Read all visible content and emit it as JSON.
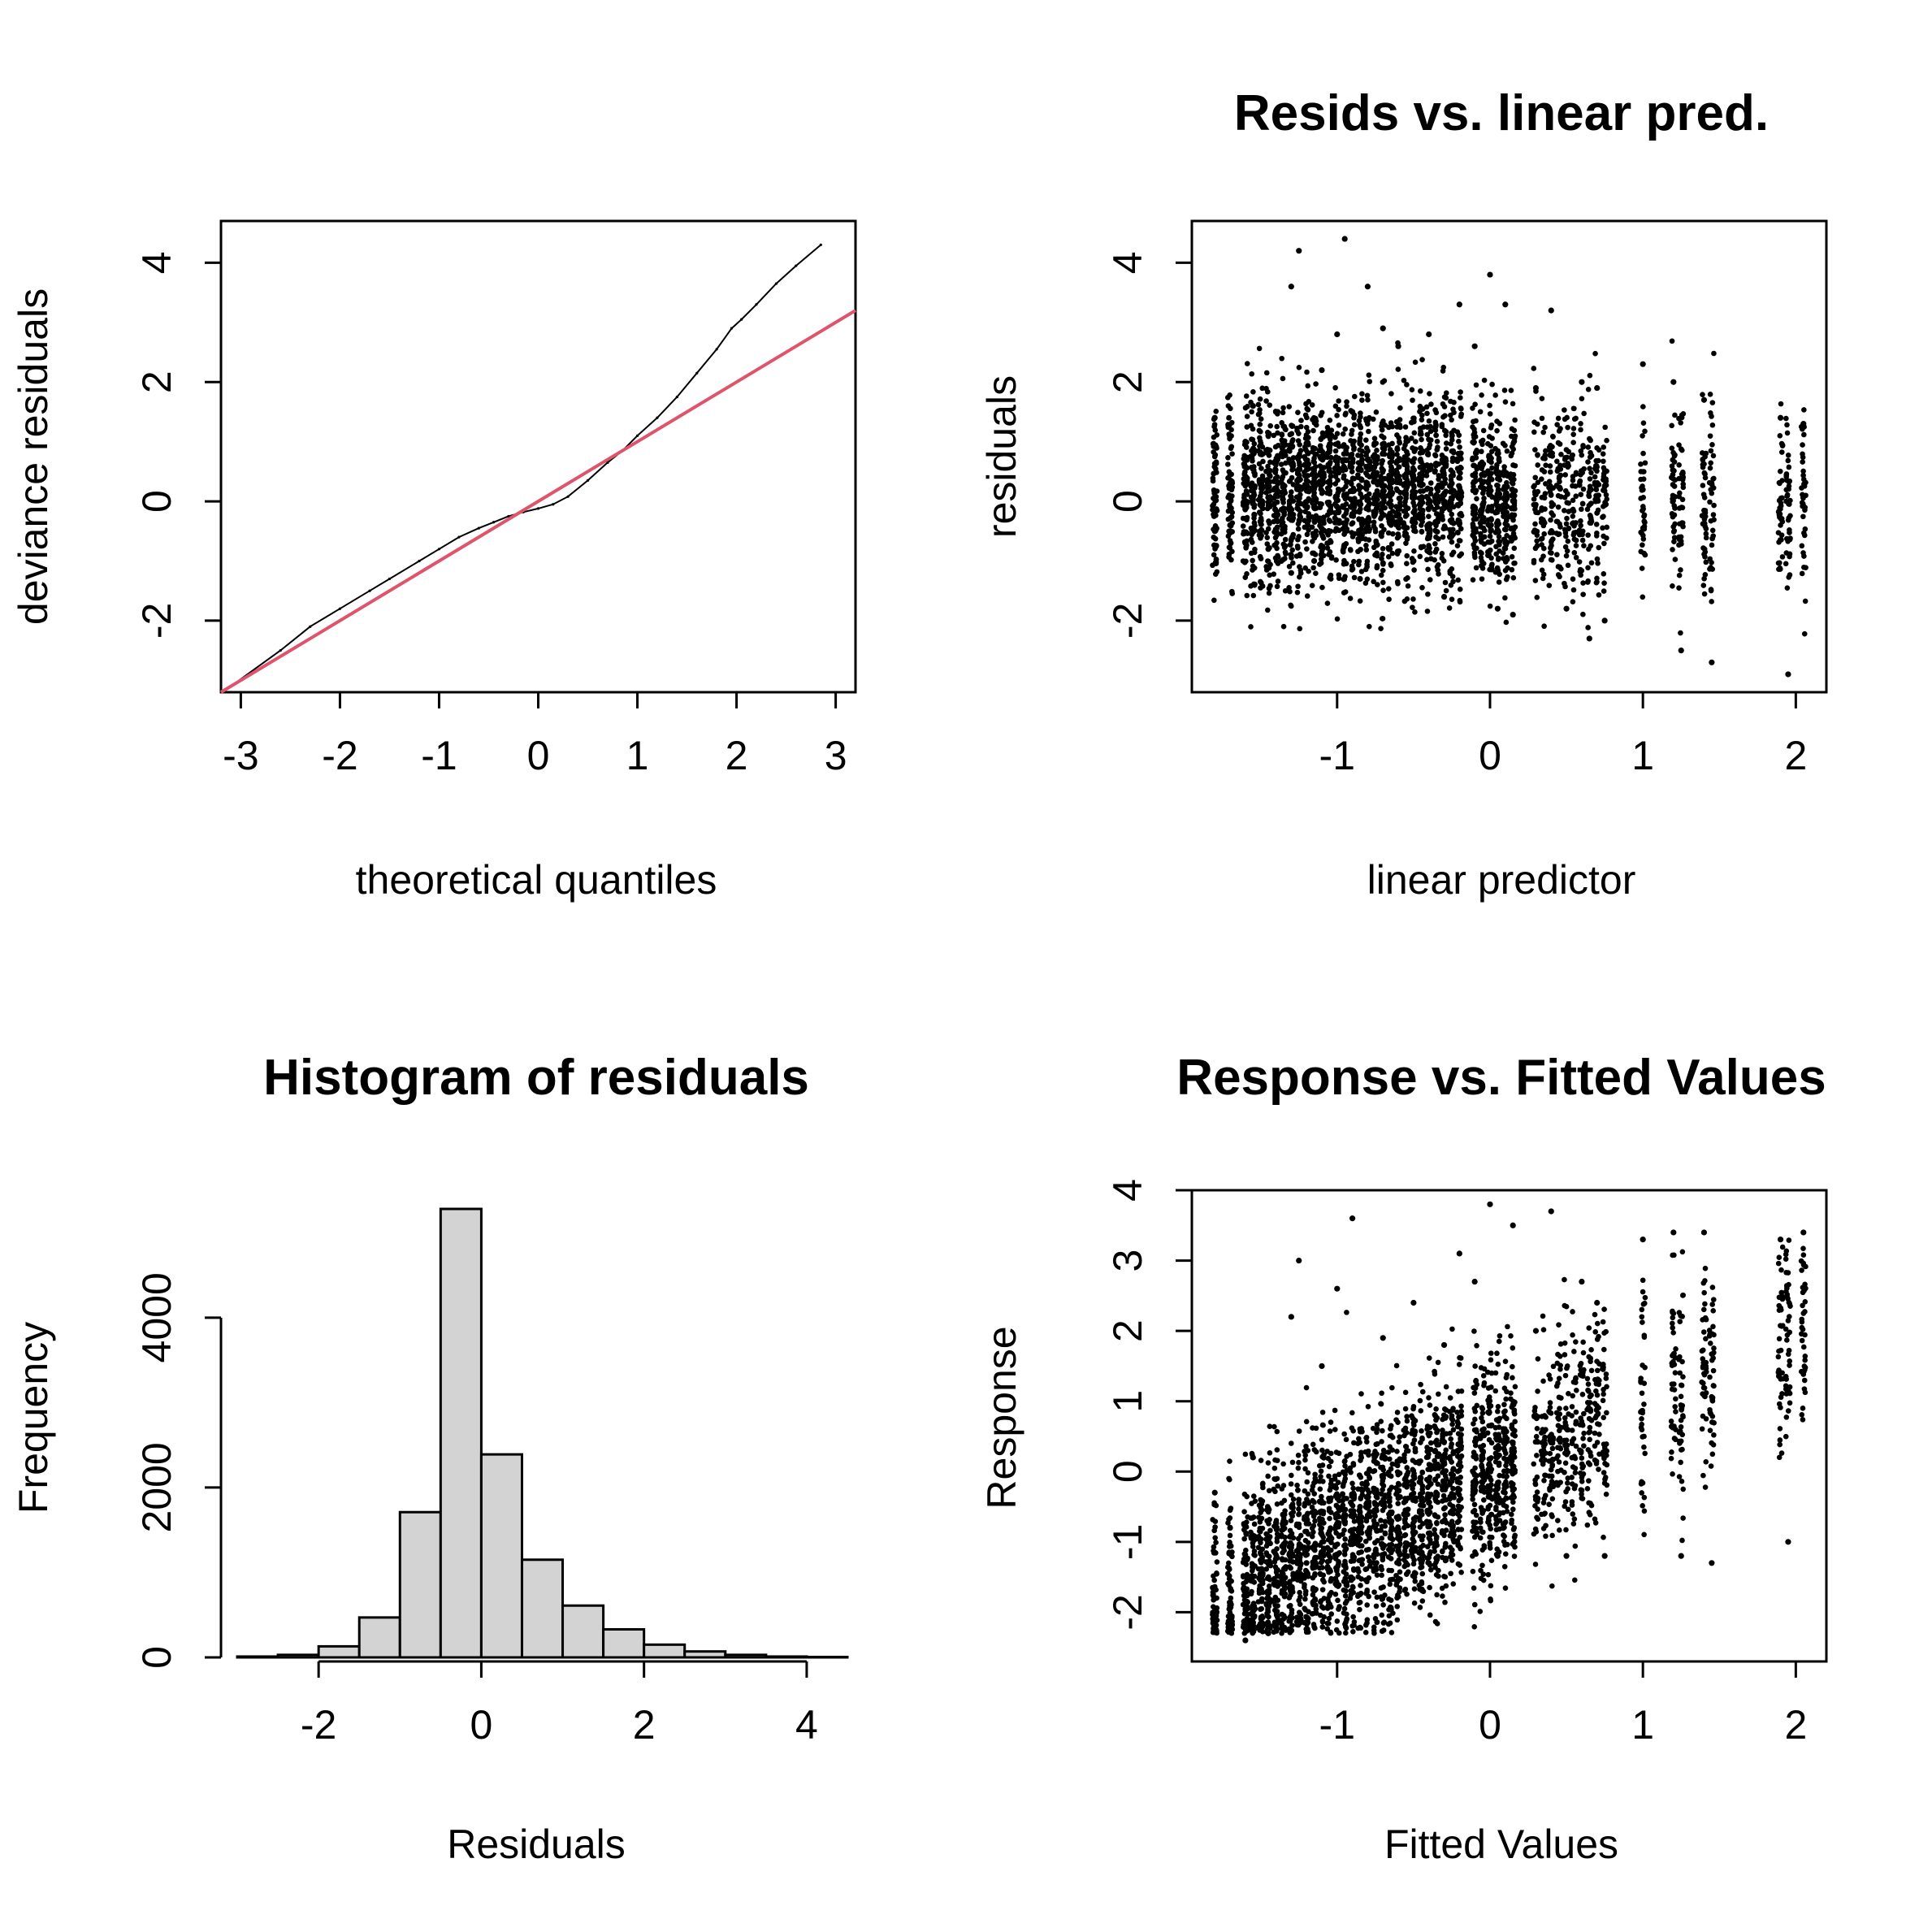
{
  "chart_data": [
    {
      "type": "scatter",
      "title": "",
      "xlabel": "theoretical quantiles",
      "ylabel": "deviance residuals",
      "xlim": [
        -3.2,
        3.2
      ],
      "ylim": [
        -3.2,
        4.7
      ],
      "xticks": [
        -3,
        -2,
        -1,
        0,
        1,
        2,
        3
      ],
      "yticks": [
        -2,
        0,
        2,
        4
      ],
      "reference_line": {
        "color": "#DF536B",
        "slope": 1,
        "intercept": 0
      },
      "series": [
        {
          "x": [
            -3.1,
            -2.6,
            -2.3,
            -2.0,
            -1.7,
            -1.5,
            -1.2,
            -1.0,
            -0.8,
            -0.6,
            -0.45,
            -0.3,
            -0.15,
            0.0,
            0.15,
            0.3,
            0.5,
            0.7,
            0.85,
            1.0,
            1.2,
            1.4,
            1.6,
            1.8,
            1.95,
            2.05,
            2.2,
            2.4,
            2.6,
            2.85
          ],
          "y": [
            -3.1,
            -2.5,
            -2.1,
            -1.8,
            -1.5,
            -1.3,
            -1.0,
            -0.8,
            -0.6,
            -0.45,
            -0.35,
            -0.25,
            -0.18,
            -0.12,
            -0.05,
            0.08,
            0.35,
            0.65,
            0.85,
            1.1,
            1.4,
            1.75,
            2.15,
            2.55,
            2.9,
            3.05,
            3.3,
            3.65,
            3.95,
            4.3
          ]
        }
      ]
    },
    {
      "type": "scatter",
      "title": "Resids vs. linear pred.",
      "xlabel": "linear predictor",
      "ylabel": "residuals",
      "xlim": [
        -1.95,
        2.2
      ],
      "ylim": [
        -3.2,
        4.7
      ],
      "xticks": [
        -1,
        0,
        1,
        2
      ],
      "yticks": [
        -2,
        0,
        2,
        4
      ],
      "series": [
        {
          "x": [
            -1.8,
            -1.8,
            -1.7,
            -1.7,
            -1.6,
            -1.6,
            -1.55,
            -1.45,
            -1.4,
            -1.3,
            -1.3,
            -1.25,
            -1.2,
            -1.15,
            -1.1,
            -1.0,
            -0.95,
            -0.9,
            -0.85,
            -0.8,
            -0.7,
            -0.6,
            -0.5,
            -0.4,
            -0.3,
            -0.2,
            -0.1,
            0.0,
            0.05,
            0.1,
            0.15,
            0.3,
            0.4,
            0.5,
            0.6,
            0.65,
            0.7,
            0.75,
            1.0,
            1.2,
            1.25,
            1.4,
            1.45,
            1.9,
            1.95,
            2.05
          ],
          "y": [
            1.4,
            -0.5,
            0.3,
            -0.4,
            1.0,
            -0.7,
            1.6,
            -0.8,
            1.5,
            3.6,
            -1.2,
            4.2,
            0.2,
            -1.0,
            2.2,
            2.8,
            4.4,
            1.5,
            -1.3,
            3.6,
            2.9,
            2.6,
            -1.0,
            2.8,
            -1.6,
            3.3,
            2.6,
            3.8,
            -1.8,
            3.3,
            -1.9,
            1.9,
            3.2,
            -1.8,
            2.0,
            -2.3,
            1.9,
            -2.0,
            2.3,
            2.0,
            -2.5,
            1.7,
            -2.7,
            1.4,
            -2.9,
            1.3
          ]
        }
      ]
    },
    {
      "type": "bar",
      "title": "Histogram of residuals",
      "xlabel": "Residuals",
      "ylabel": "Frequency",
      "xlim": [
        -3.2,
        4.6
      ],
      "ylim": [
        0,
        5500
      ],
      "xticks": [
        -2,
        0,
        2,
        4
      ],
      "yticks": [
        0,
        2000,
        4000
      ],
      "bar_color": "#D3D3D3",
      "bins": [
        {
          "from": -3.0,
          "to": -2.5,
          "count": 10
        },
        {
          "from": -2.5,
          "to": -2.0,
          "count": 30
        },
        {
          "from": -2.0,
          "to": -1.5,
          "count": 130
        },
        {
          "from": -1.5,
          "to": -1.0,
          "count": 470
        },
        {
          "from": -1.0,
          "to": -0.5,
          "count": 1710
        },
        {
          "from": -0.5,
          "to": 0.0,
          "count": 5280
        },
        {
          "from": 0.0,
          "to": 0.5,
          "count": 2390
        },
        {
          "from": 0.5,
          "to": 1.0,
          "count": 1150
        },
        {
          "from": 1.0,
          "to": 1.5,
          "count": 610
        },
        {
          "from": 1.5,
          "to": 2.0,
          "count": 330
        },
        {
          "from": 2.0,
          "to": 2.5,
          "count": 150
        },
        {
          "from": 2.5,
          "to": 3.0,
          "count": 70
        },
        {
          "from": 3.0,
          "to": 3.5,
          "count": 30
        },
        {
          "from": 3.5,
          "to": 4.0,
          "count": 10
        },
        {
          "from": 4.0,
          "to": 4.5,
          "count": 5
        }
      ]
    },
    {
      "type": "scatter",
      "title": "Response vs. Fitted Values",
      "xlabel": "Fitted Values",
      "ylabel": "Response",
      "xlim": [
        -1.95,
        2.2
      ],
      "ylim": [
        -2.7,
        4.0
      ],
      "xticks": [
        -1,
        0,
        1,
        2
      ],
      "yticks": [
        -2,
        -1,
        0,
        1,
        2,
        3,
        4
      ],
      "series": [
        {
          "x": [
            -1.8,
            -1.8,
            -1.7,
            -1.6,
            -1.55,
            -1.45,
            -1.3,
            -1.25,
            -1.2,
            -1.1,
            -1.0,
            -0.9,
            -0.85,
            -0.7,
            -0.6,
            -0.5,
            -0.4,
            -0.3,
            -0.2,
            -0.1,
            0.0,
            0.05,
            0.15,
            0.3,
            0.4,
            0.5,
            0.6,
            0.7,
            0.75,
            1.0,
            1.2,
            1.25,
            1.4,
            1.45,
            1.9,
            1.95,
            2.05
          ],
          "y": [
            -0.3,
            -2.2,
            -0.8,
            -2.4,
            0.2,
            -2.3,
            2.2,
            3.0,
            -1.3,
            1.5,
            2.6,
            3.6,
            -0.5,
            1.9,
            -0.9,
            2.4,
            -1.3,
            1.8,
            3.1,
            2.7,
            3.8,
            -1.2,
            3.5,
            2.0,
            3.7,
            -1.2,
            2.7,
            2.4,
            -1.2,
            3.3,
            3.4,
            -1.2,
            3.4,
            -1.3,
            3.3,
            -1.0,
            3.4
          ]
        }
      ]
    }
  ]
}
